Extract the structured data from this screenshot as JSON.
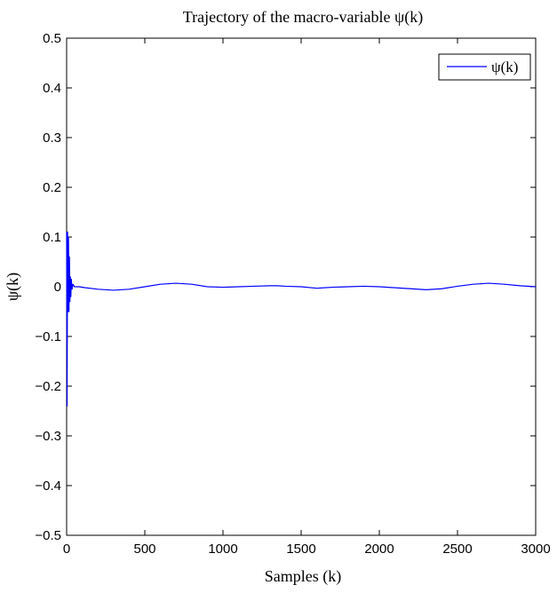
{
  "chart_data": {
    "type": "line",
    "title": "Trajectory of the macro-variable ψ(k)",
    "xlabel": "Samples (k)",
    "ylabel": "ψ(k)",
    "xlim": [
      0,
      3000
    ],
    "ylim": [
      -0.5,
      0.5
    ],
    "xticks": [
      "0",
      "500",
      "1000",
      "1500",
      "2000",
      "2500",
      "3000"
    ],
    "yticks": [
      "0.5",
      "0.4",
      "0.3",
      "0.2",
      "0.1",
      "0",
      "−0.1",
      "−0.2",
      "−0.3",
      "−0.4",
      "−0.5"
    ],
    "grid": false,
    "legend_position": "top-right",
    "series": [
      {
        "name": "ψ(k)",
        "color": "#0000ff",
        "x": [
          0,
          3,
          6,
          9,
          12,
          15,
          18,
          21,
          24,
          27,
          30,
          35,
          40,
          50,
          60,
          80,
          120,
          200,
          300,
          400,
          500,
          600,
          700,
          800,
          900,
          1000,
          1100,
          1200,
          1300,
          1350,
          1400,
          1500,
          1600,
          1650,
          1700,
          1800,
          1900,
          2000,
          2100,
          2200,
          2300,
          2400,
          2500,
          2600,
          2700,
          2800,
          2900,
          3000
        ],
        "y": [
          0.11,
          -0.24,
          0.11,
          -0.05,
          0.1,
          -0.05,
          0.06,
          -0.03,
          0.02,
          -0.02,
          0.015,
          -0.005,
          0.005,
          0.0,
          0.0,
          0.0,
          -0.002,
          -0.005,
          -0.007,
          -0.005,
          0.0,
          0.005,
          0.007,
          0.005,
          0.0,
          -0.001,
          0.0,
          0.001,
          0.002,
          0.002,
          0.001,
          0.0,
          -0.003,
          -0.002,
          -0.001,
          0.0,
          0.001,
          0.0,
          -0.002,
          -0.004,
          -0.006,
          -0.004,
          0.001,
          0.005,
          0.007,
          0.005,
          0.002,
          0.0
        ]
      }
    ]
  }
}
